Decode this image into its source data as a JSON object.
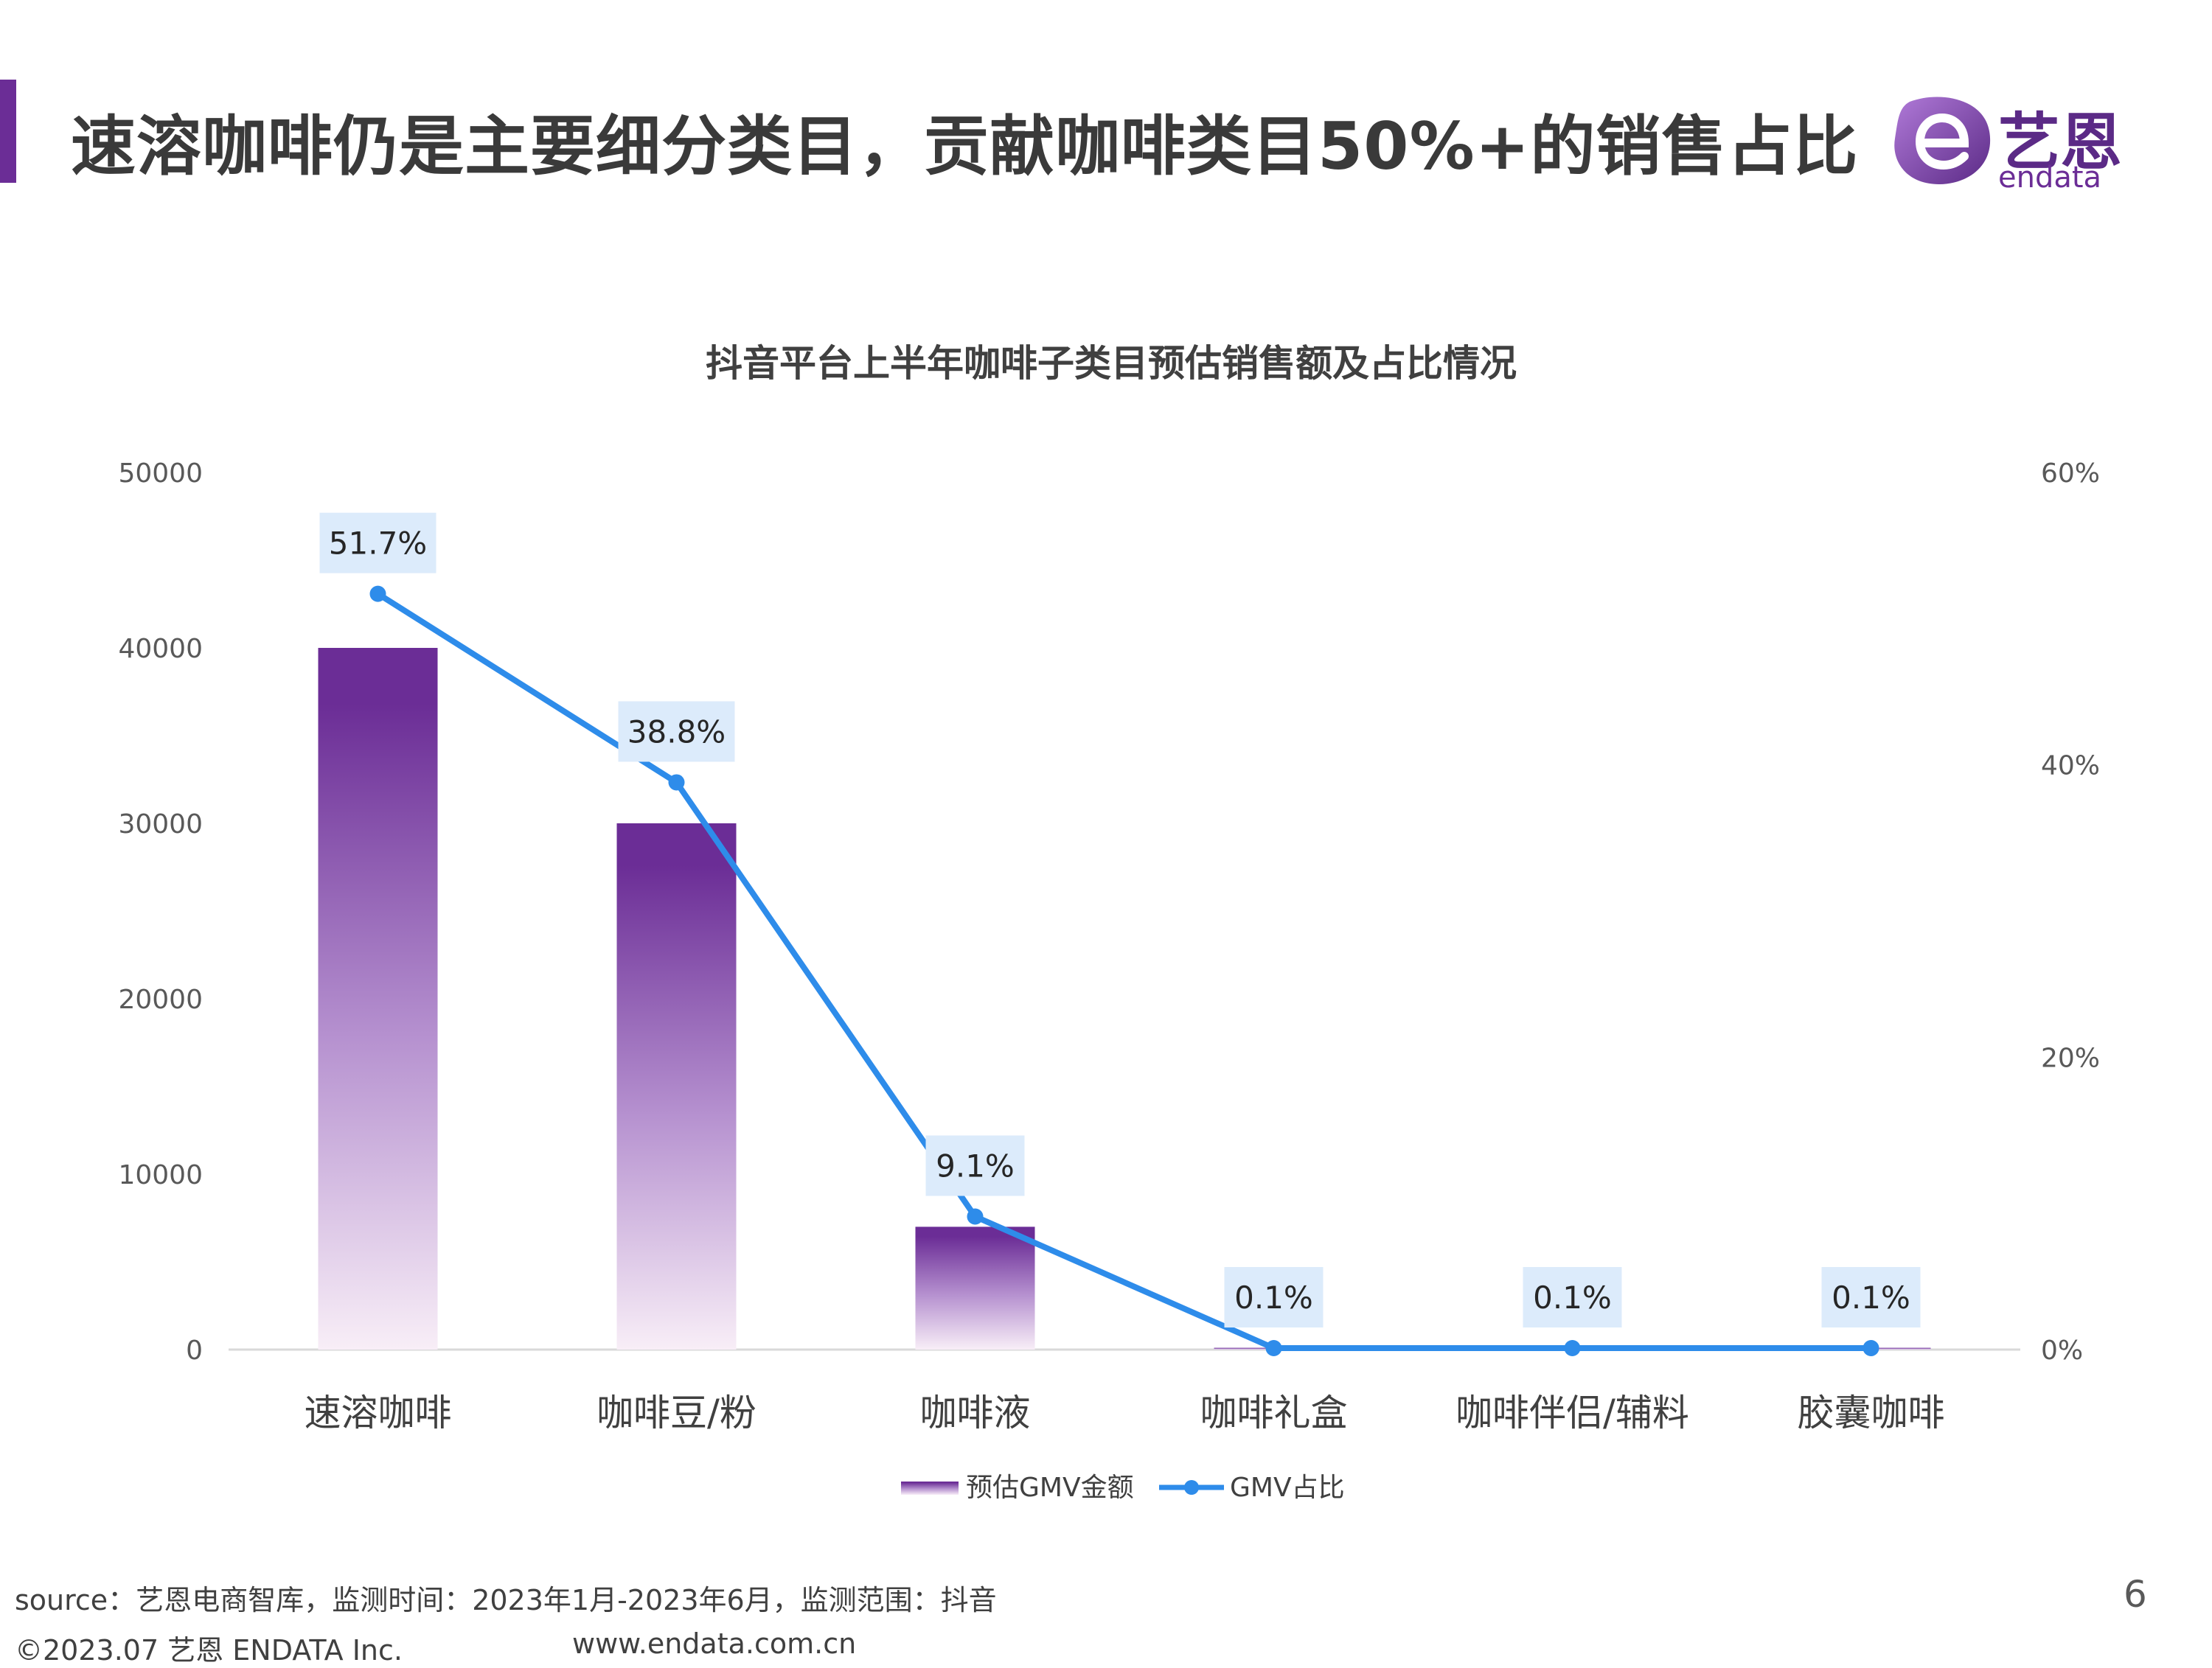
{
  "page": {
    "title": "速溶咖啡仍是主要细分类目，贡献咖啡类目50%+的销售占比",
    "page_number": "6"
  },
  "logo": {
    "cn": "艺恩",
    "en": "endata"
  },
  "footer": {
    "source": "source：艺恩电商智库，监测时间：2023年1月-2023年6月，监测范围：抖音",
    "copyright": "©2023.07 艺恩 ENDATA Inc.",
    "website": "www.endata.com.cn"
  },
  "colors": {
    "accent": "#6b2d96",
    "bar_top": "#6b2d96",
    "bar_bottom": "#f6ecf6",
    "line": "#2e8cea",
    "label_bg": "#dcebfb"
  },
  "chart_data": {
    "type": "bar",
    "title": "抖音平台上半年咖啡子类目预估销售额及占比情况",
    "categories": [
      "速溶咖啡",
      "咖啡豆/粉",
      "咖啡液",
      "咖啡礼盒",
      "咖啡伴侣/辅料",
      "胶囊咖啡"
    ],
    "series": [
      {
        "name": "预估GMV金额",
        "type": "bar",
        "axis": "left",
        "values": [
          40000,
          30000,
          7000,
          100,
          60,
          100
        ]
      },
      {
        "name": "GMV占比",
        "type": "line",
        "axis": "right",
        "values": [
          51.7,
          38.8,
          9.1,
          0.1,
          0.1,
          0.1
        ],
        "labels": [
          "51.7%",
          "38.8%",
          "9.1%",
          "0.1%",
          "0.1%",
          "0.1%"
        ]
      }
    ],
    "y_left": {
      "ylim": [
        0,
        50000
      ],
      "ticks": [
        "0",
        "10000",
        "20000",
        "30000",
        "40000",
        "50000"
      ]
    },
    "y_right": {
      "ylim": [
        0,
        60
      ],
      "ticks": [
        "0%",
        "20%",
        "40%",
        "60%"
      ]
    },
    "grid": false,
    "legend": "bottom"
  }
}
